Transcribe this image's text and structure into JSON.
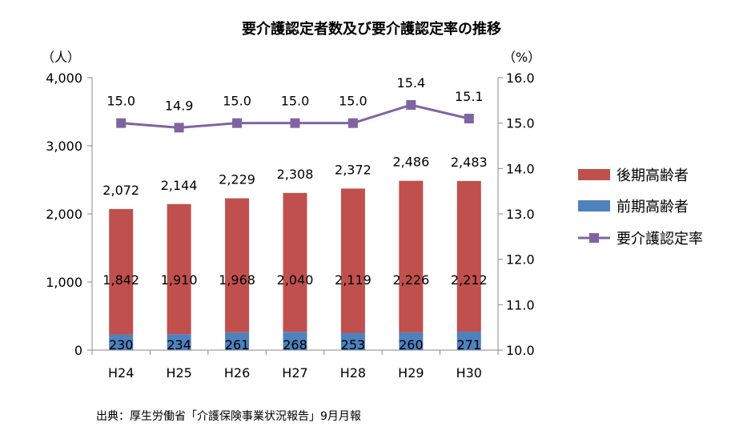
{
  "chart_data": {
    "type": "bar",
    "title": "要介護認定者数及び要介護認定率の推移",
    "left_unit": "（人）",
    "right_unit": "（%）",
    "categories": [
      "H24",
      "H25",
      "H26",
      "H27",
      "H28",
      "H29",
      "H30"
    ],
    "stack_totals": [
      2072,
      2144,
      2229,
      2308,
      2372,
      2486,
      2483
    ],
    "total_labels": [
      "2,072",
      "2,144",
      "2,229",
      "2,308",
      "2,372",
      "2,486",
      "2,483"
    ],
    "series": [
      {
        "name": "前期高齢者",
        "type": "bar",
        "axis": "left",
        "color": "#4f81bd",
        "values": [
          230,
          234,
          261,
          268,
          253,
          260,
          271
        ],
        "labels": [
          "230",
          "234",
          "261",
          "268",
          "253",
          "260",
          "271"
        ]
      },
      {
        "name": "後期高齢者",
        "type": "bar",
        "axis": "left",
        "color": "#c0504d",
        "values": [
          1842,
          1910,
          1968,
          2040,
          2119,
          2226,
          2212
        ],
        "labels": [
          "1,842",
          "1,910",
          "1,968",
          "2,040",
          "2,119",
          "2,226",
          "2,212"
        ]
      },
      {
        "name": "要介護認定率",
        "type": "line",
        "axis": "right",
        "color": "#8064a2",
        "values": [
          15.0,
          14.9,
          15.0,
          15.0,
          15.0,
          15.4,
          15.1
        ],
        "labels": [
          "15.0",
          "14.9",
          "15.0",
          "15.0",
          "15.0",
          "15.4",
          "15.1"
        ]
      }
    ],
    "y_left": {
      "range": [
        0,
        4000
      ],
      "ticks": [
        0,
        1000,
        2000,
        3000,
        4000
      ],
      "tick_labels": [
        "0",
        "1,000",
        "2,000",
        "3,000",
        "4,000"
      ]
    },
    "y_right": {
      "range": [
        10.0,
        16.0
      ],
      "ticks": [
        10,
        11,
        12,
        13,
        14,
        15,
        16
      ],
      "tick_labels": [
        "10.0",
        "11.0",
        "12.0",
        "13.0",
        "14.0",
        "15.0",
        "16.0"
      ]
    },
    "grid": false,
    "legend": {
      "position": "right",
      "items": [
        "後期高齢者",
        "前期高齢者",
        "要介護認定率"
      ]
    },
    "source_note": "出典：厚生労働省「介護保険事業状況報告」9月月報"
  }
}
